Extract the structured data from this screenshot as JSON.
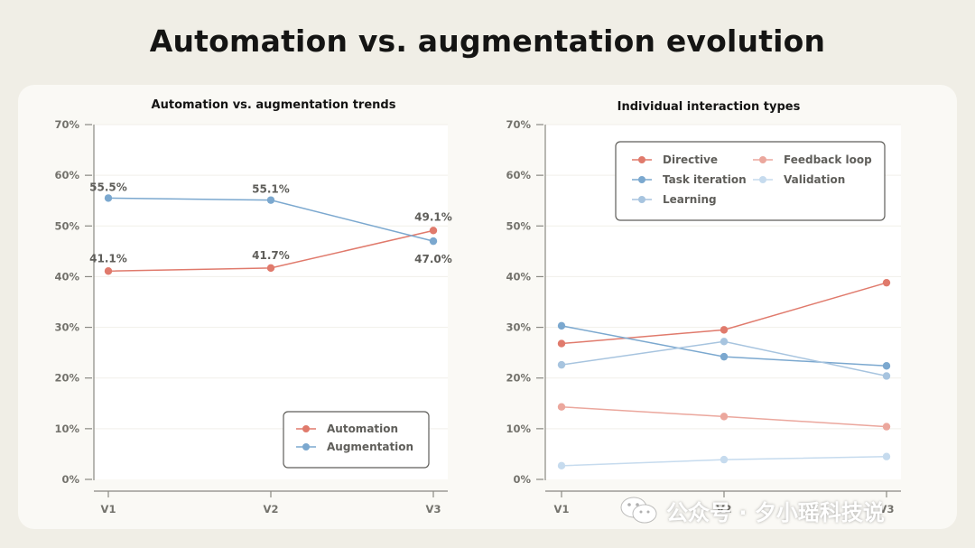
{
  "page": {
    "title": "Automation vs. augmentation evolution"
  },
  "chart_data": [
    {
      "type": "line",
      "title": "Automation vs. augmentation trends",
      "categories": [
        "V1",
        "V2",
        "V3"
      ],
      "ylim": [
        0,
        70
      ],
      "yticks": [
        "0%",
        "10%",
        "20%",
        "30%",
        "40%",
        "50%",
        "60%",
        "70%"
      ],
      "series": [
        {
          "name": "Automation",
          "color": "#e07a6c",
          "values": [
            41.1,
            41.7,
            49.1
          ],
          "labels": [
            "41.1%",
            "41.7%",
            "49.1%"
          ]
        },
        {
          "name": "Augmentation",
          "color": "#7ba8cf",
          "values": [
            55.5,
            55.1,
            47.0
          ],
          "labels": [
            "55.5%",
            "55.1%",
            "47.0%"
          ]
        }
      ],
      "legend": "bottom-right"
    },
    {
      "type": "line",
      "title": "Individual interaction types",
      "categories": [
        "V1",
        "V2",
        "V3"
      ],
      "ylim": [
        0,
        70
      ],
      "yticks": [
        "0%",
        "10%",
        "20%",
        "30%",
        "40%",
        "50%",
        "60%",
        "70%"
      ],
      "series": [
        {
          "name": "Directive",
          "color": "#e07a6c",
          "values": [
            26.8,
            29.5,
            38.8
          ]
        },
        {
          "name": "Task iteration",
          "color": "#7ba8cf",
          "values": [
            30.3,
            24.2,
            22.4
          ]
        },
        {
          "name": "Learning",
          "color": "#a7c4df",
          "values": [
            22.6,
            27.2,
            20.4
          ]
        },
        {
          "name": "Feedback loop",
          "color": "#eba79d",
          "values": [
            14.3,
            12.4,
            10.4
          ]
        },
        {
          "name": "Validation",
          "color": "#c6dbee",
          "values": [
            2.7,
            3.9,
            4.5
          ]
        }
      ],
      "legend": "top"
    }
  ],
  "watermark": {
    "text": "公众号 · 夕小瑶科技说",
    "icon": "wechat-icon"
  }
}
